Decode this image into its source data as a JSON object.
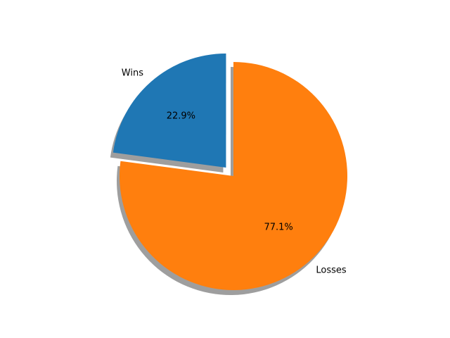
{
  "chart_data": {
    "type": "pie",
    "labels": [
      "Wins",
      "Losses"
    ],
    "values": [
      22.9,
      77.1
    ],
    "autopct_labels": [
      "22.9%",
      "77.1%"
    ],
    "colors": [
      "#1f77b4",
      "#ff7f0e"
    ],
    "exploded": [
      "Wins"
    ],
    "shadow": true,
    "title": ""
  }
}
